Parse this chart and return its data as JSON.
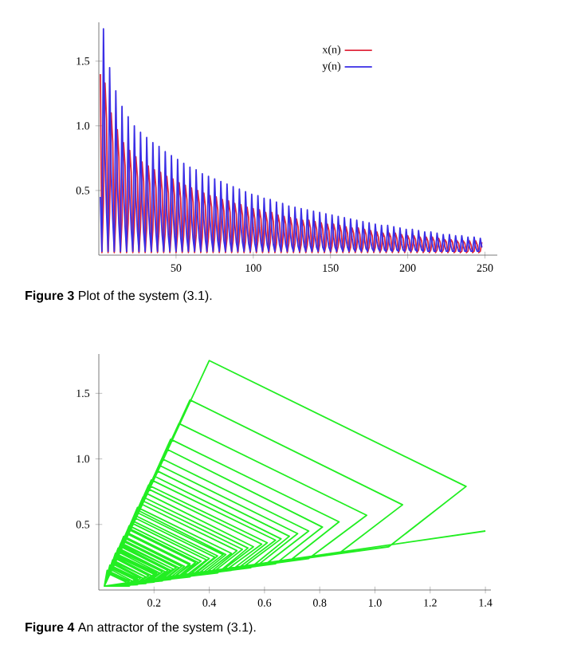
{
  "chart_data": [
    {
      "type": "line",
      "xlim": [
        0,
        258
      ],
      "ylim": [
        0,
        1.8
      ],
      "xticks": [
        50,
        100,
        150,
        200,
        250
      ],
      "yticks": [
        {
          "value": 0.5,
          "label": "0.5"
        },
        {
          "value": 1,
          "label": "1.0"
        },
        {
          "value": 1.5,
          "label": "1.5"
        }
      ],
      "legend": "top",
      "line_style": "solid",
      "annotations": [
        "**Figure 3** Plot of the system (3.1)."
      ],
      "x": [
        1,
        2,
        3,
        4,
        5,
        6,
        7,
        8,
        9,
        10,
        11,
        12,
        13,
        14,
        15,
        16,
        17,
        18,
        19,
        20,
        21,
        22,
        23,
        24,
        25,
        26,
        27,
        28,
        29,
        30,
        31,
        32,
        33,
        34,
        35,
        36,
        37,
        38,
        39,
        40,
        41,
        42,
        43,
        44,
        45,
        46,
        47,
        48,
        49,
        50,
        51,
        52,
        53,
        54,
        55,
        56,
        57,
        58,
        59,
        60,
        61,
        62,
        63,
        64,
        65,
        66,
        67,
        68,
        69,
        70,
        71,
        72,
        73,
        74,
        75,
        76,
        77,
        78,
        79,
        80,
        81,
        82,
        83,
        84,
        85,
        86,
        87,
        88,
        89,
        90,
        91,
        92,
        93,
        94,
        95,
        96,
        97,
        98,
        99,
        100,
        101,
        102,
        103,
        104,
        105,
        106,
        107,
        108,
        109,
        110,
        111,
        112,
        113,
        114,
        115,
        116,
        117,
        118,
        119,
        120,
        121,
        122,
        123,
        124,
        125,
        126,
        127,
        128,
        129,
        130,
        131,
        132,
        133,
        134,
        135,
        136,
        137,
        138,
        139,
        140,
        141,
        142,
        143,
        144,
        145,
        146,
        147,
        148,
        149,
        150,
        151,
        152,
        153,
        154,
        155,
        156,
        157,
        158,
        159,
        160,
        161,
        162,
        163,
        164,
        165,
        166,
        167,
        168,
        169,
        170,
        171,
        172,
        173,
        174,
        175,
        176,
        177,
        178,
        179,
        180,
        181,
        182,
        183,
        184,
        185,
        186,
        187,
        188,
        189,
        190,
        191,
        192,
        193,
        194,
        195,
        196,
        197,
        198,
        199,
        200,
        201,
        202,
        203,
        204,
        205,
        206,
        207,
        208,
        209,
        210,
        211,
        212,
        213,
        214,
        215,
        216,
        217,
        218,
        219,
        220,
        221,
        222,
        223,
        224,
        225,
        226,
        227,
        228,
        229,
        230,
        231,
        232,
        233,
        234,
        235,
        236,
        237,
        238,
        239,
        240,
        241,
        242,
        243,
        244,
        245,
        246,
        247,
        248
      ],
      "series": [
        {
          "name": "x(n)",
          "color": "#e0283c",
          "values": [
            1.4,
            0.02,
            0.4,
            1.33,
            1.05,
            0.02,
            0.33,
            1.1,
            0.87,
            0.02,
            0.29,
            0.97,
            0.76,
            0.02,
            0.26,
            0.87,
            0.69,
            0.02,
            0.25,
            0.81,
            0.64,
            0.02,
            0.23,
            0.76,
            0.6,
            0.02,
            0.22,
            0.72,
            0.57,
            0.02,
            0.21,
            0.69,
            0.55,
            0.02,
            0.2,
            0.66,
            0.52,
            0.02,
            0.19,
            0.64,
            0.5,
            0.02,
            0.18,
            0.61,
            0.48,
            0.02,
            0.18,
            0.59,
            0.46,
            0.02,
            0.17,
            0.56,
            0.44,
            0.02,
            0.16,
            0.54,
            0.43,
            0.02,
            0.16,
            0.52,
            0.41,
            0.02,
            0.15,
            0.5,
            0.4,
            0.02,
            0.14,
            0.48,
            0.38,
            0.02,
            0.14,
            0.46,
            0.37,
            0.02,
            0.14,
            0.45,
            0.35,
            0.02,
            0.13,
            0.43,
            0.34,
            0.02,
            0.13,
            0.42,
            0.33,
            0.02,
            0.12,
            0.4,
            0.32,
            0.02,
            0.12,
            0.39,
            0.31,
            0.02,
            0.11,
            0.37,
            0.29,
            0.02,
            0.11,
            0.36,
            0.28,
            0.02,
            0.11,
            0.35,
            0.28,
            0.02,
            0.1,
            0.33,
            0.26,
            0.02,
            0.1,
            0.33,
            0.26,
            0.02,
            0.09,
            0.31,
            0.25,
            0.02,
            0.09,
            0.3,
            0.24,
            0.02,
            0.09,
            0.29,
            0.23,
            0.02,
            0.09,
            0.28,
            0.22,
            0.02,
            0.08,
            0.27,
            0.22,
            0.02,
            0.08,
            0.27,
            0.21,
            0.02,
            0.08,
            0.26,
            0.2,
            0.02,
            0.08,
            0.25,
            0.2,
            0.02,
            0.07,
            0.24,
            0.19,
            0.02,
            0.07,
            0.24,
            0.19,
            0.02,
            0.07,
            0.23,
            0.18,
            0.02,
            0.07,
            0.22,
            0.17,
            0.02,
            0.06,
            0.21,
            0.17,
            0.02,
            0.06,
            0.21,
            0.16,
            0.02,
            0.06,
            0.2,
            0.16,
            0.02,
            0.06,
            0.19,
            0.15,
            0.02,
            0.06,
            0.18,
            0.14,
            0.02,
            0.05,
            0.17,
            0.14,
            0.02,
            0.05,
            0.17,
            0.14,
            0.02,
            0.05,
            0.17,
            0.13,
            0.02,
            0.05,
            0.16,
            0.13,
            0.02,
            0.05,
            0.15,
            0.12,
            0.02,
            0.05,
            0.15,
            0.12,
            0.02,
            0.04,
            0.14,
            0.11,
            0.02,
            0.04,
            0.14,
            0.11,
            0.02,
            0.04,
            0.14,
            0.11,
            0.02,
            0.04,
            0.13,
            0.1,
            0.02,
            0.04,
            0.12,
            0.1,
            0.02,
            0.04,
            0.12,
            0.1,
            0.02,
            0.03,
            0.11,
            0.09,
            0.02,
            0.03,
            0.11,
            0.09,
            0.02,
            0.03,
            0.11,
            0.08,
            0.02,
            0.03,
            0.11,
            0.08,
            0.02,
            0.03,
            0.1
          ]
        },
        {
          "name": "y(n)",
          "color": "#3a2ee6",
          "values": [
            0.45,
            0.03,
            1.75,
            0.79,
            0.33,
            0.03,
            1.45,
            0.65,
            0.28,
            0.03,
            1.27,
            0.57,
            0.24,
            0.03,
            1.15,
            0.52,
            0.22,
            0.03,
            1.07,
            0.48,
            0.2,
            0.03,
            1.0,
            0.45,
            0.19,
            0.03,
            0.95,
            0.43,
            0.18,
            0.03,
            0.91,
            0.41,
            0.17,
            0.03,
            0.87,
            0.39,
            0.17,
            0.03,
            0.84,
            0.38,
            0.16,
            0.03,
            0.8,
            0.36,
            0.15,
            0.03,
            0.77,
            0.35,
            0.15,
            0.03,
            0.74,
            0.33,
            0.14,
            0.03,
            0.71,
            0.32,
            0.13,
            0.03,
            0.68,
            0.31,
            0.13,
            0.03,
            0.66,
            0.3,
            0.13,
            0.03,
            0.63,
            0.28,
            0.12,
            0.03,
            0.61,
            0.27,
            0.12,
            0.03,
            0.59,
            0.27,
            0.11,
            0.03,
            0.57,
            0.26,
            0.11,
            0.03,
            0.55,
            0.25,
            0.1,
            0.03,
            0.53,
            0.24,
            0.1,
            0.03,
            0.51,
            0.23,
            0.1,
            0.03,
            0.49,
            0.22,
            0.09,
            0.03,
            0.47,
            0.21,
            0.09,
            0.03,
            0.46,
            0.21,
            0.09,
            0.03,
            0.44,
            0.2,
            0.08,
            0.03,
            0.43,
            0.19,
            0.08,
            0.03,
            0.41,
            0.18,
            0.08,
            0.03,
            0.4,
            0.18,
            0.08,
            0.03,
            0.38,
            0.17,
            0.07,
            0.03,
            0.37,
            0.17,
            0.07,
            0.03,
            0.36,
            0.16,
            0.07,
            0.03,
            0.35,
            0.16,
            0.07,
            0.03,
            0.34,
            0.15,
            0.06,
            0.03,
            0.33,
            0.15,
            0.06,
            0.03,
            0.32,
            0.14,
            0.06,
            0.03,
            0.31,
            0.14,
            0.06,
            0.03,
            0.3,
            0.14,
            0.06,
            0.03,
            0.29,
            0.13,
            0.06,
            0.03,
            0.28,
            0.13,
            0.05,
            0.03,
            0.27,
            0.12,
            0.05,
            0.03,
            0.26,
            0.12,
            0.05,
            0.03,
            0.25,
            0.11,
            0.05,
            0.03,
            0.24,
            0.11,
            0.05,
            0.03,
            0.23,
            0.1,
            0.04,
            0.03,
            0.23,
            0.1,
            0.04,
            0.03,
            0.22,
            0.1,
            0.04,
            0.03,
            0.21,
            0.09,
            0.04,
            0.03,
            0.2,
            0.09,
            0.04,
            0.03,
            0.2,
            0.09,
            0.04,
            0.03,
            0.19,
            0.09,
            0.04,
            0.03,
            0.18,
            0.08,
            0.03,
            0.03,
            0.18,
            0.08,
            0.03,
            0.03,
            0.17,
            0.08,
            0.03,
            0.03,
            0.16,
            0.07,
            0.03,
            0.03,
            0.16,
            0.07,
            0.03,
            0.03,
            0.15,
            0.07,
            0.03,
            0.03,
            0.15,
            0.07,
            0.03,
            0.03,
            0.14,
            0.06,
            0.03,
            0.03,
            0.14,
            0.06,
            0.03,
            0.03,
            0.13,
            0.06
          ]
        }
      ]
    },
    {
      "type": "line",
      "xlim": [
        0,
        1.42
      ],
      "ylim": [
        0,
        1.8
      ],
      "xticks": [
        {
          "value": 0.2,
          "label": "0.2"
        },
        {
          "value": 0.4,
          "label": "0.4"
        },
        {
          "value": 0.6,
          "label": "0.6"
        },
        {
          "value": 0.8,
          "label": "0.8"
        },
        {
          "value": 1,
          "label": "1.0"
        },
        {
          "value": 1.2,
          "label": "1.2"
        },
        {
          "value": 1.4,
          "label": "1.4"
        }
      ],
      "yticks": [
        {
          "value": 0.5,
          "label": "0.5"
        },
        {
          "value": 1,
          "label": "1.0"
        },
        {
          "value": 1.5,
          "label": "1.5"
        }
      ],
      "line_style": "solid",
      "annotations": [
        "**Figure 4** An attractor of the system (3.1)."
      ],
      "series": [
        {
          "color": "#22ee22",
          "x": [
            1.4,
            0.02,
            0.4,
            1.33,
            1.05,
            0.02,
            0.33,
            1.1,
            0.87,
            0.02,
            0.29,
            0.97,
            0.76,
            0.02,
            0.26,
            0.87,
            0.69,
            0.02,
            0.25,
            0.81,
            0.64,
            0.02,
            0.23,
            0.76,
            0.6,
            0.02,
            0.22,
            0.72,
            0.57,
            0.02,
            0.21,
            0.69,
            0.55,
            0.02,
            0.2,
            0.66,
            0.52,
            0.02,
            0.19,
            0.64,
            0.5,
            0.02,
            0.18,
            0.61,
            0.48,
            0.02,
            0.18,
            0.59,
            0.46,
            0.02,
            0.17,
            0.56,
            0.44,
            0.02,
            0.16,
            0.54,
            0.43,
            0.02,
            0.16,
            0.52,
            0.41,
            0.02,
            0.15,
            0.5,
            0.4,
            0.02,
            0.14,
            0.48,
            0.38,
            0.02,
            0.14,
            0.46,
            0.37,
            0.02,
            0.14,
            0.45,
            0.35,
            0.02,
            0.13,
            0.43,
            0.34,
            0.02,
            0.13,
            0.42,
            0.33,
            0.02,
            0.12,
            0.4,
            0.32,
            0.02,
            0.12,
            0.39,
            0.31,
            0.02,
            0.11,
            0.37,
            0.29,
            0.02,
            0.11,
            0.36,
            0.28,
            0.02,
            0.11,
            0.35,
            0.28,
            0.02,
            0.1,
            0.33,
            0.26,
            0.02,
            0.1,
            0.33,
            0.26,
            0.02,
            0.09,
            0.31,
            0.25,
            0.02,
            0.09,
            0.3,
            0.24,
            0.02,
            0.09,
            0.29,
            0.23,
            0.02,
            0.09,
            0.28,
            0.22,
            0.02,
            0.08,
            0.27,
            0.22,
            0.02,
            0.08,
            0.27,
            0.21,
            0.02,
            0.08,
            0.26,
            0.2,
            0.02,
            0.08,
            0.25,
            0.2,
            0.02,
            0.07,
            0.24,
            0.19,
            0.02,
            0.07,
            0.24,
            0.19,
            0.02,
            0.07,
            0.23,
            0.18,
            0.02,
            0.07,
            0.22,
            0.17,
            0.02,
            0.06,
            0.21,
            0.17,
            0.02,
            0.06,
            0.21,
            0.16,
            0.02,
            0.06,
            0.2,
            0.16,
            0.02,
            0.06,
            0.19,
            0.15,
            0.02,
            0.06,
            0.18,
            0.14,
            0.02,
            0.05,
            0.17,
            0.14,
            0.02,
            0.05,
            0.17,
            0.14,
            0.02,
            0.05,
            0.17,
            0.13,
            0.02,
            0.05,
            0.16,
            0.13,
            0.02,
            0.05,
            0.15,
            0.12,
            0.02,
            0.05,
            0.15,
            0.12,
            0.02,
            0.04,
            0.14,
            0.11,
            0.02,
            0.04,
            0.14,
            0.11,
            0.02,
            0.04,
            0.14,
            0.11,
            0.02,
            0.04,
            0.13,
            0.1,
            0.02,
            0.04,
            0.12,
            0.1,
            0.02,
            0.04,
            0.12,
            0.1,
            0.02,
            0.03,
            0.11,
            0.09,
            0.02,
            0.03,
            0.11,
            0.09,
            0.02,
            0.03,
            0.11,
            0.08,
            0.02,
            0.03,
            0.11,
            0.08,
            0.02,
            0.03,
            0.1
          ],
          "values": [
            0.45,
            0.03,
            1.75,
            0.79,
            0.33,
            0.03,
            1.45,
            0.65,
            0.28,
            0.03,
            1.27,
            0.57,
            0.24,
            0.03,
            1.15,
            0.52,
            0.22,
            0.03,
            1.07,
            0.48,
            0.2,
            0.03,
            1.0,
            0.45,
            0.19,
            0.03,
            0.95,
            0.43,
            0.18,
            0.03,
            0.91,
            0.41,
            0.17,
            0.03,
            0.87,
            0.39,
            0.17,
            0.03,
            0.84,
            0.38,
            0.16,
            0.03,
            0.8,
            0.36,
            0.15,
            0.03,
            0.77,
            0.35,
            0.15,
            0.03,
            0.74,
            0.33,
            0.14,
            0.03,
            0.71,
            0.32,
            0.13,
            0.03,
            0.68,
            0.31,
            0.13,
            0.03,
            0.66,
            0.3,
            0.13,
            0.03,
            0.63,
            0.28,
            0.12,
            0.03,
            0.61,
            0.27,
            0.12,
            0.03,
            0.59,
            0.27,
            0.11,
            0.03,
            0.57,
            0.26,
            0.11,
            0.03,
            0.55,
            0.25,
            0.1,
            0.03,
            0.53,
            0.24,
            0.1,
            0.03,
            0.51,
            0.23,
            0.1,
            0.03,
            0.49,
            0.22,
            0.09,
            0.03,
            0.47,
            0.21,
            0.09,
            0.03,
            0.46,
            0.21,
            0.09,
            0.03,
            0.44,
            0.2,
            0.08,
            0.03,
            0.43,
            0.19,
            0.08,
            0.03,
            0.41,
            0.18,
            0.08,
            0.03,
            0.4,
            0.18,
            0.08,
            0.03,
            0.38,
            0.17,
            0.07,
            0.03,
            0.37,
            0.17,
            0.07,
            0.03,
            0.36,
            0.16,
            0.07,
            0.03,
            0.35,
            0.16,
            0.07,
            0.03,
            0.34,
            0.15,
            0.06,
            0.03,
            0.33,
            0.15,
            0.06,
            0.03,
            0.32,
            0.14,
            0.06,
            0.03,
            0.31,
            0.14,
            0.06,
            0.03,
            0.3,
            0.14,
            0.06,
            0.03,
            0.29,
            0.13,
            0.06,
            0.03,
            0.28,
            0.13,
            0.05,
            0.03,
            0.27,
            0.12,
            0.05,
            0.03,
            0.26,
            0.12,
            0.05,
            0.03,
            0.25,
            0.11,
            0.05,
            0.03,
            0.24,
            0.11,
            0.05,
            0.03,
            0.23,
            0.1,
            0.04,
            0.03,
            0.23,
            0.1,
            0.04,
            0.03,
            0.22,
            0.1,
            0.04,
            0.03,
            0.21,
            0.09,
            0.04,
            0.03,
            0.2,
            0.09,
            0.04,
            0.03,
            0.2,
            0.09,
            0.04,
            0.03,
            0.19,
            0.09,
            0.04,
            0.03,
            0.18,
            0.08,
            0.03,
            0.03,
            0.18,
            0.08,
            0.03,
            0.03,
            0.17,
            0.08,
            0.03,
            0.03,
            0.16,
            0.07,
            0.03,
            0.03,
            0.16,
            0.07,
            0.03,
            0.03,
            0.15,
            0.07,
            0.03,
            0.03,
            0.15,
            0.07,
            0.03,
            0.03,
            0.14,
            0.06,
            0.03,
            0.03,
            0.14,
            0.06,
            0.03,
            0.03,
            0.13,
            0.06
          ]
        }
      ]
    }
  ]
}
